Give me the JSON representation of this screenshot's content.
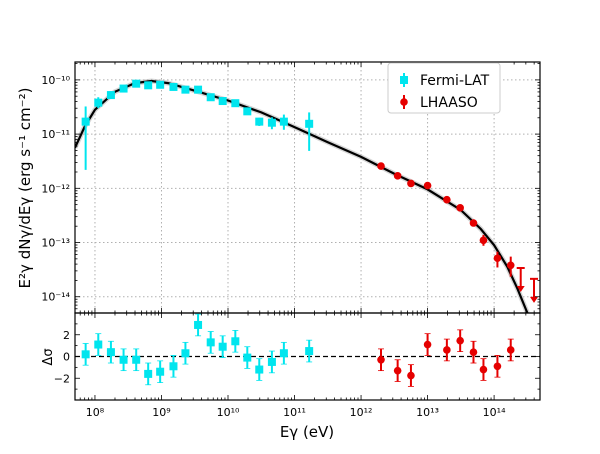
{
  "chart_data": [
    {
      "panel": "spectrum",
      "type": "scatter",
      "xscale": "log",
      "yscale": "log",
      "xlim_log10": [
        7.7,
        14.69
      ],
      "ylim_log10": [
        -14.3,
        -9.67
      ],
      "xlabel": "Eγ (eV)",
      "ylabel": "E²γ dNγ/dEγ (erg s⁻¹ cm⁻²)",
      "y_ticks": [
        {
          "log": -10,
          "label": "10⁻¹⁰"
        },
        {
          "log": -11,
          "label": "10⁻¹¹"
        },
        {
          "log": -12,
          "label": "10⁻¹²"
        },
        {
          "log": -13,
          "label": "10⁻¹³"
        },
        {
          "log": -14,
          "label": "10⁻¹⁴"
        }
      ],
      "grid": true,
      "legend": {
        "position": "top-right",
        "entries": [
          {
            "label": "Fermi-LAT",
            "color": "#00e5ee",
            "marker": "square"
          },
          {
            "label": "LHAASO",
            "color": "#e50000",
            "marker": "circle"
          }
        ]
      },
      "series": [
        {
          "name": "Fermi-LAT",
          "color": "#00e5ee",
          "marker": "square",
          "points_log10": [
            [
              7.86,
              -10.77,
              0.28,
              0.89
            ],
            [
              8.05,
              -10.42,
              0.1,
              0.1
            ],
            [
              8.24,
              -10.28,
              0.05,
              0.05
            ],
            [
              8.43,
              -10.16,
              0.04,
              0.04
            ],
            [
              8.62,
              -10.07,
              0.04,
              0.04
            ],
            [
              8.8,
              -10.1,
              0.04,
              0.04
            ],
            [
              8.98,
              -10.09,
              0.04,
              0.04
            ],
            [
              9.18,
              -10.13,
              0.04,
              0.04
            ],
            [
              9.36,
              -10.18,
              0.04,
              0.04
            ],
            [
              9.55,
              -10.18,
              0.04,
              0.04
            ],
            [
              9.74,
              -10.32,
              0.04,
              0.04
            ],
            [
              9.92,
              -10.39,
              0.04,
              0.04
            ],
            [
              10.11,
              -10.43,
              0.05,
              0.05
            ],
            [
              10.29,
              -10.58,
              0.05,
              0.05
            ],
            [
              10.47,
              -10.77,
              0.07,
              0.08
            ],
            [
              10.66,
              -10.79,
              0.1,
              0.12
            ],
            [
              10.84,
              -10.77,
              0.13,
              0.15
            ],
            [
              11.22,
              -10.81,
              0.21,
              0.5
            ]
          ]
        },
        {
          "name": "LHAASO",
          "color": "#e50000",
          "marker": "circle",
          "points_log10": [
            [
              12.3,
              -11.59,
              0.03,
              0.03
            ],
            [
              12.55,
              -11.77,
              0.03,
              0.03
            ],
            [
              12.75,
              -11.91,
              0.03,
              0.03
            ],
            [
              13.0,
              -11.95,
              0.03,
              0.03
            ],
            [
              13.29,
              -12.21,
              0.03,
              0.03
            ],
            [
              13.49,
              -12.36,
              0.03,
              0.03
            ],
            [
              13.69,
              -12.64,
              0.04,
              0.04
            ],
            [
              13.84,
              -12.96,
              0.1,
              0.1
            ],
            [
              14.05,
              -13.29,
              0.12,
              0.17
            ],
            [
              14.25,
              -13.42,
              0.16,
              0.21
            ]
          ],
          "upper_limits_log10": [
            [
              14.4,
              -13.47
            ],
            [
              14.6,
              -13.67
            ]
          ]
        },
        {
          "name": "model",
          "color": "#000000",
          "type": "line",
          "points_log10": [
            [
              7.7,
              -11.25
            ],
            [
              7.85,
              -10.85
            ],
            [
              8.0,
              -10.55
            ],
            [
              8.3,
              -10.22
            ],
            [
              8.6,
              -10.06
            ],
            [
              8.85,
              -10.02
            ],
            [
              9.1,
              -10.06
            ],
            [
              9.5,
              -10.2
            ],
            [
              10,
              -10.38
            ],
            [
              10.5,
              -10.6
            ],
            [
              11,
              -10.87
            ],
            [
              11.5,
              -11.15
            ],
            [
              12,
              -11.42
            ],
            [
              12.5,
              -11.73
            ],
            [
              13,
              -12.02
            ],
            [
              13.5,
              -12.4
            ],
            [
              13.8,
              -12.75
            ],
            [
              14.0,
              -13.05
            ],
            [
              14.2,
              -13.45
            ],
            [
              14.35,
              -13.85
            ],
            [
              14.5,
              -14.3
            ]
          ]
        }
      ]
    },
    {
      "panel": "residuals",
      "type": "scatter",
      "xscale": "log",
      "xlim_log10": [
        7.7,
        14.69
      ],
      "ylim": [
        -4,
        4
      ],
      "ylabel": "Δσ",
      "y_ticks": [
        {
          "v": 2,
          "label": "2"
        },
        {
          "v": 0,
          "label": "0"
        },
        {
          "v": -2,
          "label": "−2"
        }
      ],
      "x_ticks": [
        {
          "log": 8,
          "label": "10⁸"
        },
        {
          "log": 9,
          "label": "10⁹"
        },
        {
          "log": 10,
          "label": "10¹⁰"
        },
        {
          "log": 11,
          "label": "10¹¹"
        },
        {
          "log": 12,
          "label": "10¹²"
        },
        {
          "log": 13,
          "label": "10¹³"
        },
        {
          "log": 14,
          "label": "10¹⁴"
        }
      ],
      "reference_line": 0,
      "series": [
        {
          "name": "Fermi-LAT",
          "color": "#00e5ee",
          "marker": "square",
          "x_log10": [
            7.86,
            8.05,
            8.24,
            8.43,
            8.62,
            8.8,
            8.98,
            9.18,
            9.36,
            9.55,
            9.74,
            9.92,
            10.11,
            10.29,
            10.47,
            10.66,
            10.84,
            11.22
          ],
          "values": [
            0.2,
            1.1,
            0.4,
            -0.3,
            -0.3,
            -1.6,
            -1.4,
            -0.9,
            0.3,
            2.9,
            1.3,
            0.9,
            1.4,
            -0.1,
            -1.2,
            -0.5,
            0.3,
            0.5
          ]
        },
        {
          "name": "LHAASO",
          "color": "#e50000",
          "marker": "circle",
          "x_log10": [
            12.3,
            12.55,
            12.75,
            13.0,
            13.29,
            13.49,
            13.69,
            13.84,
            14.05,
            14.25
          ],
          "values": [
            -0.3,
            -1.3,
            -1.75,
            1.1,
            0.6,
            1.45,
            0.4,
            -1.2,
            -0.9,
            0.6
          ]
        }
      ]
    }
  ]
}
